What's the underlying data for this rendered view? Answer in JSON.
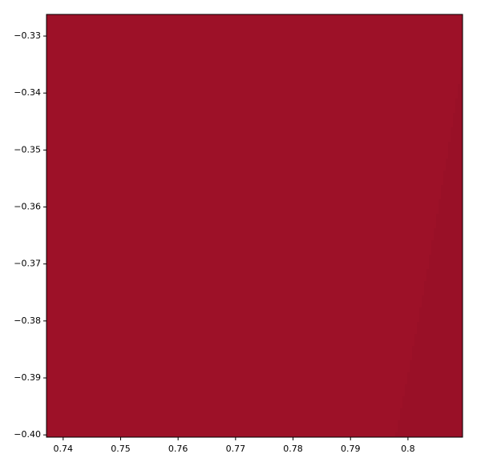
{
  "chart_data": {
    "type": "image",
    "xlim": [
      0.7371,
      0.8095
    ],
    "ylim": [
      -0.4004,
      -0.3262
    ],
    "xticks": [
      0.74,
      0.75,
      0.76,
      0.77,
      0.78,
      0.79,
      0.8
    ],
    "yticks": [
      {
        "value": -0.33,
        "label": "−0.33"
      },
      {
        "value": -0.34,
        "label": "−0.34"
      },
      {
        "value": -0.35,
        "label": "−0.35"
      },
      {
        "value": -0.36,
        "label": "−0.36"
      },
      {
        "value": -0.37,
        "label": "−0.37"
      },
      {
        "value": -0.38,
        "label": "−0.38"
      },
      {
        "value": -0.39,
        "label": "−0.39"
      },
      {
        "value": -0.4,
        "label": "−0.40"
      }
    ]
  }
}
